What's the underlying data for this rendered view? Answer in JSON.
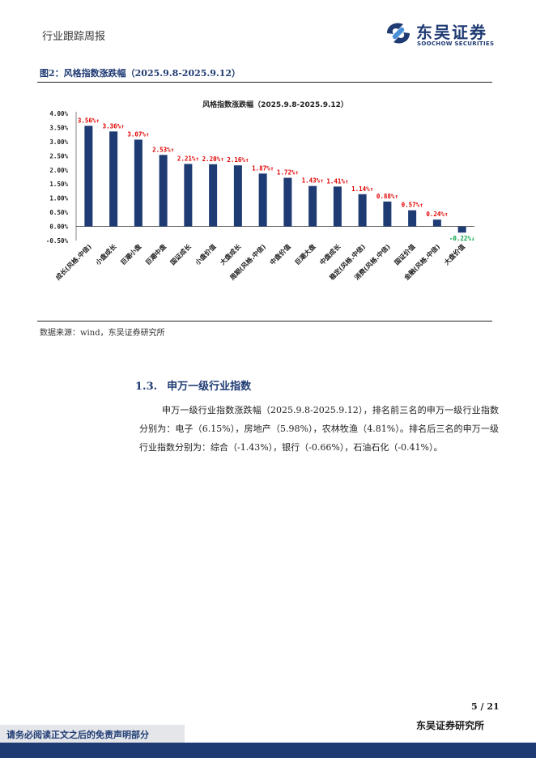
{
  "header": {
    "title": "行业跟踪周报"
  },
  "logo": {
    "name": "东吴证券",
    "sub": "SOOCHOW SECURITIES"
  },
  "figure": {
    "caption": "图2：风格指数涨跌幅（2025.9.8-2025.9.12）"
  },
  "chart_data": {
    "type": "bar",
    "title": "风格指数涨跌幅（2025.9.8-2025.9.12）",
    "categories": [
      "成长(风格.中信)",
      "小盘成长",
      "巨潮小盘",
      "巨潮中盘",
      "国证成长",
      "小盘价值",
      "大盘成长",
      "周期(风格.中信)",
      "中盘价值",
      "巨潮大盘",
      "中盘成长",
      "稳定(风格.中信)",
      "消费(风格.中信)",
      "国证价值",
      "金融(风格.中信)",
      "大盘价值"
    ],
    "values": [
      3.56,
      3.36,
      3.07,
      2.53,
      2.21,
      2.2,
      2.16,
      1.87,
      1.72,
      1.43,
      1.41,
      1.14,
      0.88,
      0.57,
      0.24,
      -0.22
    ],
    "data_labels": [
      "3.56%↑",
      "3.36%↑",
      "3.07%↑",
      "2.53%↑",
      "2.21%↑",
      "2.20%↑",
      "2.16%↑",
      "1.87%↑",
      "1.72%↑",
      "1.43%↑",
      "1.41%↑",
      "1.14%↑",
      "0.88%↑",
      "0.57%↑",
      "0.24%↑",
      "-0.22%↓"
    ],
    "yticks": [
      "4.00%",
      "3.50%",
      "3.00%",
      "2.50%",
      "2.00%",
      "1.50%",
      "1.00%",
      "0.50%",
      "0.00%",
      "-0.50%"
    ],
    "ylim": [
      -0.5,
      4.0
    ],
    "bar_color": "#1f3b73",
    "up_color": "#e00000",
    "down_color": "#00a040"
  },
  "source": "数据来源：wind，东吴证券研究所",
  "section": {
    "number": "1.3.",
    "title": "申万一级行业指数"
  },
  "paragraph": "申万一级行业指数涨跌幅（2025.9.8-2025.9.12），排名前三名的申万一级行业指数分别为：电子（6.15%），房地产（5.98%），农林牧渔（4.81%）。排名后三名的申万一级行业指数分别为：综合（-1.43%），银行（-0.66%），石油石化（-0.41%）。",
  "page": "5 / 21",
  "footer": {
    "disclaimer": "请务必阅读正文之后的免责声明部分",
    "org": "东吴证券研究所"
  }
}
